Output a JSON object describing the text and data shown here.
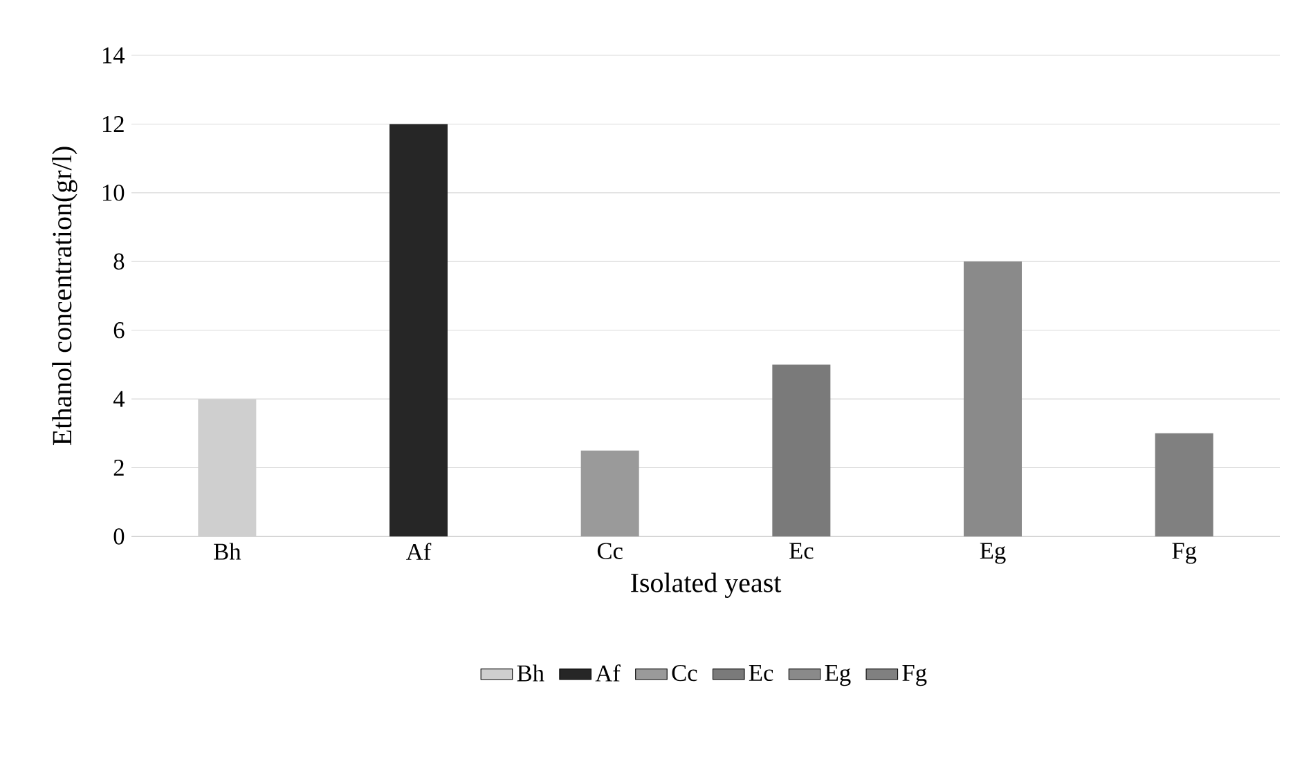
{
  "chart_data": {
    "type": "bar",
    "xlabel": "Isolated yeast",
    "ylabel": "Ethanol concentration(gr/l)",
    "categories": [
      "Bh",
      "Af",
      "Cc",
      "Ec",
      "Eg",
      "Fg"
    ],
    "series": [
      {
        "name": "Bh",
        "color": "#cfcfcf",
        "values": [
          4,
          null,
          null,
          null,
          null,
          null
        ]
      },
      {
        "name": "Af",
        "color": "#262626",
        "values": [
          null,
          12,
          null,
          null,
          null,
          null
        ]
      },
      {
        "name": "Cc",
        "color": "#9a9a9a",
        "values": [
          null,
          null,
          2.5,
          null,
          null,
          null
        ]
      },
      {
        "name": "Ec",
        "color": "#7a7a7a",
        "values": [
          null,
          null,
          null,
          5,
          null,
          null
        ]
      },
      {
        "name": "Eg",
        "color": "#8a8a8a",
        "values": [
          null,
          null,
          null,
          null,
          8,
          null
        ]
      },
      {
        "name": "Fg",
        "color": "#808080",
        "values": [
          null,
          null,
          null,
          null,
          null,
          3
        ]
      }
    ],
    "ylim": [
      0,
      14
    ],
    "yticks": [
      0,
      2,
      4,
      6,
      8,
      10,
      12,
      14
    ],
    "grid": "y",
    "legend": "bottom"
  }
}
